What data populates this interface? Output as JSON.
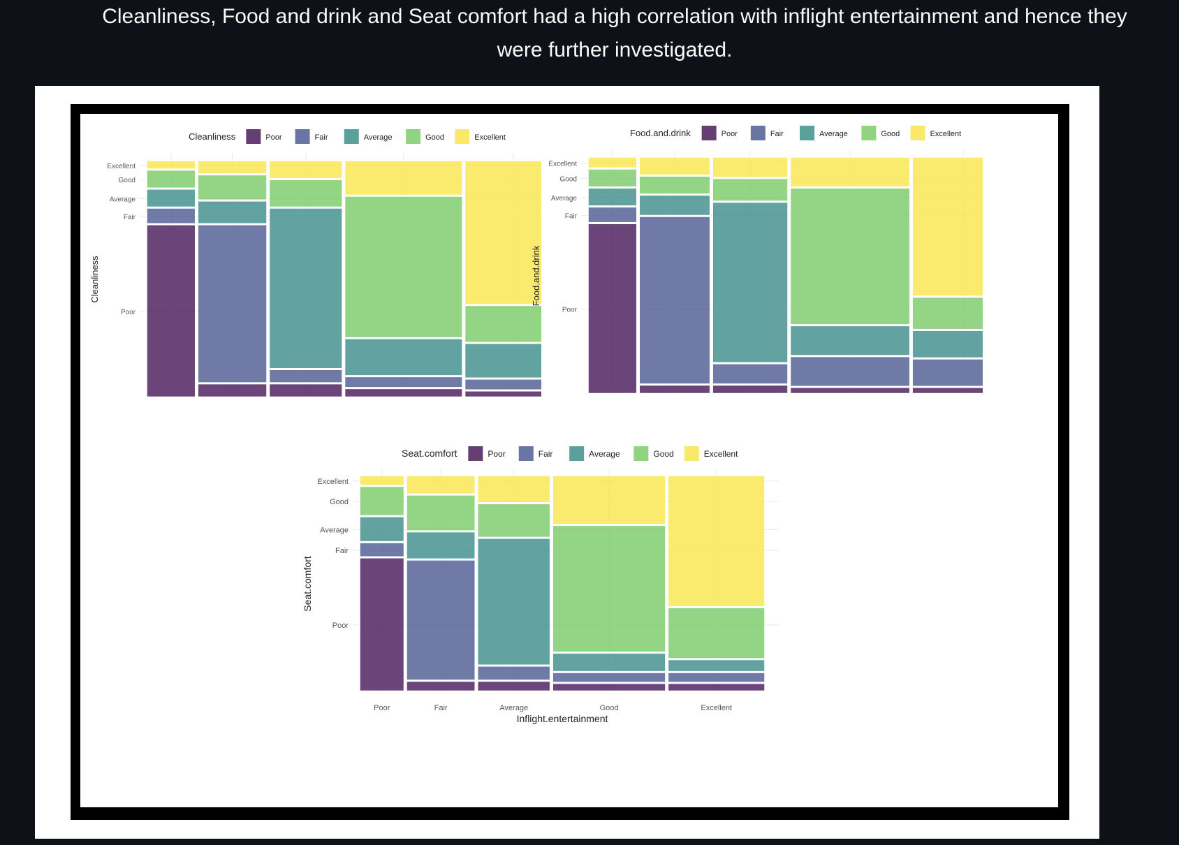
{
  "caption": "Cleanliness, Food and drink and Seat comfort had a high correlation with inflight entertainment and hence they\nwere further investigated.",
  "colors": {
    "Poor": "#4b1c5c",
    "Fair": "#4f5d92",
    "Average": "#3f8f8c",
    "Good": "#7dcb6a",
    "Excellent": "#f9e54d",
    "grid": "#e8e8e8",
    "text": "#222222",
    "tick": "#555555"
  },
  "chart_data": [
    {
      "type": "mosaic",
      "title": "",
      "xlabel": "Inflight.entertainment",
      "ylabel": "Cleanliness",
      "legend_title": "Cleanliness",
      "legend": [
        "Poor",
        "Fair",
        "Average",
        "Good",
        "Excellent"
      ],
      "legend_position": "top",
      "grid": true,
      "categories": [
        "Poor",
        "Fair",
        "Average",
        "Good",
        "Excellent"
      ],
      "y_tick_labels": [
        "Poor",
        "Fair",
        "Average",
        "Good",
        "Excellent"
      ],
      "column_widths": [
        0.12,
        0.17,
        0.18,
        0.29,
        0.24
      ],
      "series": [
        {
          "name": "Poor",
          "values": [
            0.73,
            0.06,
            0.06,
            0.04,
            0.03
          ]
        },
        {
          "name": "Fair",
          "values": [
            0.07,
            0.67,
            0.06,
            0.05,
            0.05
          ]
        },
        {
          "name": "Average",
          "values": [
            0.08,
            0.1,
            0.68,
            0.16,
            0.15
          ]
        },
        {
          "name": "Good",
          "values": [
            0.08,
            0.11,
            0.12,
            0.6,
            0.16
          ]
        },
        {
          "name": "Excellent",
          "values": [
            0.04,
            0.06,
            0.08,
            0.15,
            0.61
          ]
        }
      ]
    },
    {
      "type": "mosaic",
      "title": "",
      "xlabel": "Inflight.entertainment",
      "ylabel": "Food.and.drink",
      "legend_title": "Food.and.drink",
      "legend": [
        "Poor",
        "Fair",
        "Average",
        "Good",
        "Excellent"
      ],
      "legend_position": "top",
      "grid": true,
      "categories": [
        "Poor",
        "Fair",
        "Average",
        "Good",
        "Excellent"
      ],
      "y_tick_labels": [
        "Poor",
        "Fair",
        "Average",
        "Good",
        "Excellent"
      ],
      "column_widths": [
        0.11,
        0.16,
        0.17,
        0.27,
        0.23
      ],
      "series": [
        {
          "name": "Poor",
          "values": [
            0.72,
            0.04,
            0.04,
            0.03,
            0.03
          ]
        },
        {
          "name": "Fair",
          "values": [
            0.07,
            0.71,
            0.09,
            0.13,
            0.12
          ]
        },
        {
          "name": "Average",
          "values": [
            0.08,
            0.09,
            0.68,
            0.13,
            0.12
          ]
        },
        {
          "name": "Good",
          "values": [
            0.08,
            0.08,
            0.1,
            0.58,
            0.14
          ]
        },
        {
          "name": "Excellent",
          "values": [
            0.05,
            0.08,
            0.09,
            0.13,
            0.59
          ]
        }
      ]
    },
    {
      "type": "mosaic",
      "title": "",
      "xlabel": "Inflight.entertainment",
      "ylabel": "Seat.comfort",
      "legend_title": "Seat.comfort",
      "legend": [
        "Poor",
        "Fair",
        "Average",
        "Good",
        "Excellent"
      ],
      "legend_position": "top",
      "grid": true,
      "categories": [
        "Poor",
        "Fair",
        "Average",
        "Good",
        "Excellent"
      ],
      "y_tick_labels": [
        "Poor",
        "Fair",
        "Average",
        "Good",
        "Excellent"
      ],
      "column_widths": [
        0.11,
        0.17,
        0.18,
        0.28,
        0.24
      ],
      "series": [
        {
          "name": "Poor",
          "values": [
            0.62,
            0.05,
            0.05,
            0.04,
            0.04
          ]
        },
        {
          "name": "Fair",
          "values": [
            0.07,
            0.56,
            0.07,
            0.05,
            0.05
          ]
        },
        {
          "name": "Average",
          "values": [
            0.12,
            0.13,
            0.59,
            0.09,
            0.06
          ]
        },
        {
          "name": "Good",
          "values": [
            0.14,
            0.17,
            0.16,
            0.59,
            0.24
          ]
        },
        {
          "name": "Excellent",
          "values": [
            0.05,
            0.09,
            0.13,
            0.23,
            0.61
          ]
        }
      ]
    }
  ]
}
